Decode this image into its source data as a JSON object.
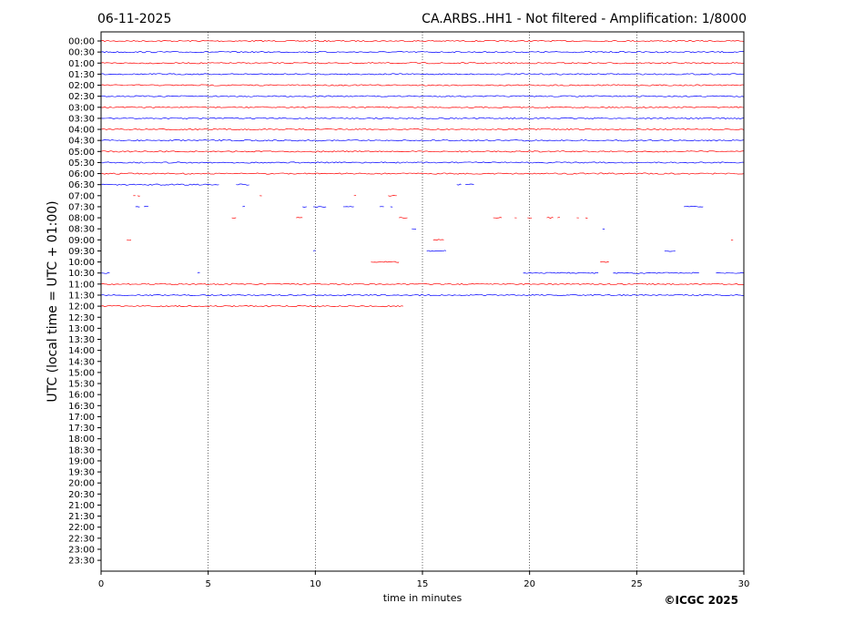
{
  "chart_data": {
    "type": "line",
    "date": "06-11-2025",
    "title": "CA.ARBS..HH1 - Not filtered - Amplification: 1/8000",
    "xlabel": "time in minutes",
    "ylabel": "UTC (local time = UTC + 01:00)",
    "copyright": "©ICGC 2025",
    "xlim": [
      0,
      30
    ],
    "xticks": [
      0,
      5,
      10,
      15,
      20,
      25,
      30
    ],
    "grid_x": true,
    "row_labels": [
      "00:00",
      "00:30",
      "01:00",
      "01:30",
      "02:00",
      "02:30",
      "03:00",
      "03:30",
      "04:00",
      "04:30",
      "05:00",
      "05:30",
      "06:00",
      "06:30",
      "07:00",
      "07:30",
      "08:00",
      "08:30",
      "09:00",
      "09:30",
      "10:00",
      "10:30",
      "11:00",
      "11:30",
      "12:00",
      "12:30",
      "13:00",
      "13:30",
      "14:00",
      "14:30",
      "15:00",
      "15:30",
      "16:00",
      "16:30",
      "17:00",
      "17:30",
      "18:00",
      "18:30",
      "19:00",
      "19:30",
      "20:00",
      "20:30",
      "21:00",
      "21:30",
      "22:00",
      "22:30",
      "23:00",
      "23:30"
    ],
    "colors": {
      "even_rows": "#ff0000",
      "odd_rows": "#0000ff"
    },
    "traces": [
      {
        "row": "00:00",
        "segments": [
          [
            0,
            30
          ]
        ]
      },
      {
        "row": "00:30",
        "segments": [
          [
            0,
            30
          ]
        ]
      },
      {
        "row": "01:00",
        "segments": [
          [
            0,
            30
          ]
        ]
      },
      {
        "row": "01:30",
        "segments": [
          [
            0,
            30
          ]
        ]
      },
      {
        "row": "02:00",
        "segments": [
          [
            0,
            30
          ]
        ]
      },
      {
        "row": "02:30",
        "segments": [
          [
            0,
            30
          ]
        ]
      },
      {
        "row": "03:00",
        "segments": [
          [
            0,
            30
          ]
        ]
      },
      {
        "row": "03:30",
        "segments": [
          [
            0,
            30
          ]
        ]
      },
      {
        "row": "04:00",
        "segments": [
          [
            0,
            30
          ]
        ]
      },
      {
        "row": "04:30",
        "segments": [
          [
            0,
            30
          ]
        ]
      },
      {
        "row": "05:00",
        "segments": [
          [
            0,
            30
          ]
        ]
      },
      {
        "row": "05:30",
        "segments": [
          [
            0,
            30
          ]
        ]
      },
      {
        "row": "06:00",
        "segments": [
          [
            0,
            30
          ]
        ]
      },
      {
        "row": "06:30",
        "segments": [
          [
            0,
            5.5
          ],
          [
            6.3,
            6.9
          ],
          [
            16.6,
            16.8
          ],
          [
            17.0,
            17.4
          ]
        ]
      },
      {
        "row": "07:00",
        "segments": [
          [
            1.5,
            1.6
          ],
          [
            1.7,
            1.8
          ],
          [
            7.4,
            7.5
          ],
          [
            11.8,
            11.9
          ],
          [
            13.4,
            13.8
          ]
        ]
      },
      {
        "row": "07:30",
        "segments": [
          [
            1.6,
            1.8
          ],
          [
            2.0,
            2.2
          ],
          [
            6.6,
            6.7
          ],
          [
            9.4,
            9.6
          ],
          [
            9.9,
            10.5
          ],
          [
            11.3,
            11.8
          ],
          [
            13.0,
            13.2
          ],
          [
            13.5,
            13.6
          ],
          [
            27.2,
            28.1
          ]
        ]
      },
      {
        "row": "08:00",
        "segments": [
          [
            6.1,
            6.3
          ],
          [
            9.1,
            9.4
          ],
          [
            13.9,
            14.3
          ],
          [
            18.3,
            18.7
          ],
          [
            19.3,
            19.4
          ],
          [
            19.9,
            20.1
          ],
          [
            20.8,
            21.1
          ],
          [
            21.3,
            21.4
          ],
          [
            22.2,
            22.3
          ],
          [
            22.6,
            22.7
          ]
        ]
      },
      {
        "row": "08:30",
        "segments": [
          [
            14.5,
            14.7
          ],
          [
            23.4,
            23.5
          ]
        ]
      },
      {
        "row": "09:00",
        "segments": [
          [
            1.2,
            1.4
          ],
          [
            15.5,
            16.0
          ],
          [
            29.4,
            29.5
          ]
        ]
      },
      {
        "row": "09:30",
        "segments": [
          [
            9.9,
            10.0
          ],
          [
            15.2,
            16.1
          ],
          [
            26.3,
            26.8
          ]
        ]
      },
      {
        "row": "10:00",
        "segments": [
          [
            12.6,
            13.9
          ],
          [
            23.3,
            23.7
          ]
        ]
      },
      {
        "row": "10:30",
        "segments": [
          [
            0,
            0.4
          ],
          [
            4.5,
            4.6
          ],
          [
            19.7,
            23.2
          ],
          [
            23.9,
            27.9
          ],
          [
            28.7,
            30
          ]
        ]
      },
      {
        "row": "11:00",
        "segments": [
          [
            0,
            30
          ]
        ]
      },
      {
        "row": "11:30",
        "segments": [
          [
            0,
            30
          ]
        ]
      },
      {
        "row": "12:00",
        "segments": [
          [
            0,
            14.1
          ]
        ]
      }
    ]
  }
}
